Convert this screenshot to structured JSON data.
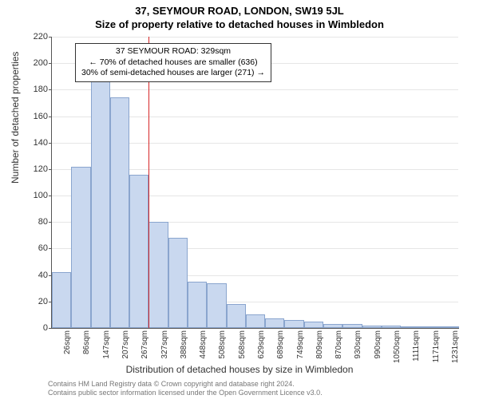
{
  "header": {
    "title1": "37, SEYMOUR ROAD, LONDON, SW19 5JL",
    "title2": "Size of property relative to detached houses in Wimbledon"
  },
  "chart": {
    "type": "histogram",
    "ylabel": "Number of detached properties",
    "xlabel": "Distribution of detached houses by size in Wimbledon",
    "ylim": [
      0,
      220
    ],
    "ytick_step": 20,
    "bar_fill": "#c9d8ef",
    "bar_stroke": "#8aa5ce",
    "grid_color": "#e6e6e6",
    "background": "#ffffff",
    "categories": [
      "26sqm",
      "86sqm",
      "147sqm",
      "207sqm",
      "267sqm",
      "327sqm",
      "388sqm",
      "448sqm",
      "508sqm",
      "568sqm",
      "629sqm",
      "689sqm",
      "749sqm",
      "809sqm",
      "870sqm",
      "930sqm",
      "990sqm",
      "1050sqm",
      "1111sqm",
      "1171sqm",
      "1231sqm"
    ],
    "values": [
      42,
      122,
      188,
      174,
      116,
      80,
      68,
      35,
      34,
      18,
      10,
      7,
      6,
      5,
      3,
      3,
      2,
      2,
      1,
      1,
      1
    ],
    "reference_line": {
      "index_after": 5,
      "color": "#d62728"
    },
    "annotation": {
      "line1": "37 SEYMOUR ROAD: 329sqm",
      "line2": "← 70% of detached houses are smaller (636)",
      "line3": "30% of semi-detached houses are larger (271) →"
    }
  },
  "footer": {
    "line1": "Contains HM Land Registry data © Crown copyright and database right 2024.",
    "line2": "Contains public sector information licensed under the Open Government Licence v3.0."
  }
}
